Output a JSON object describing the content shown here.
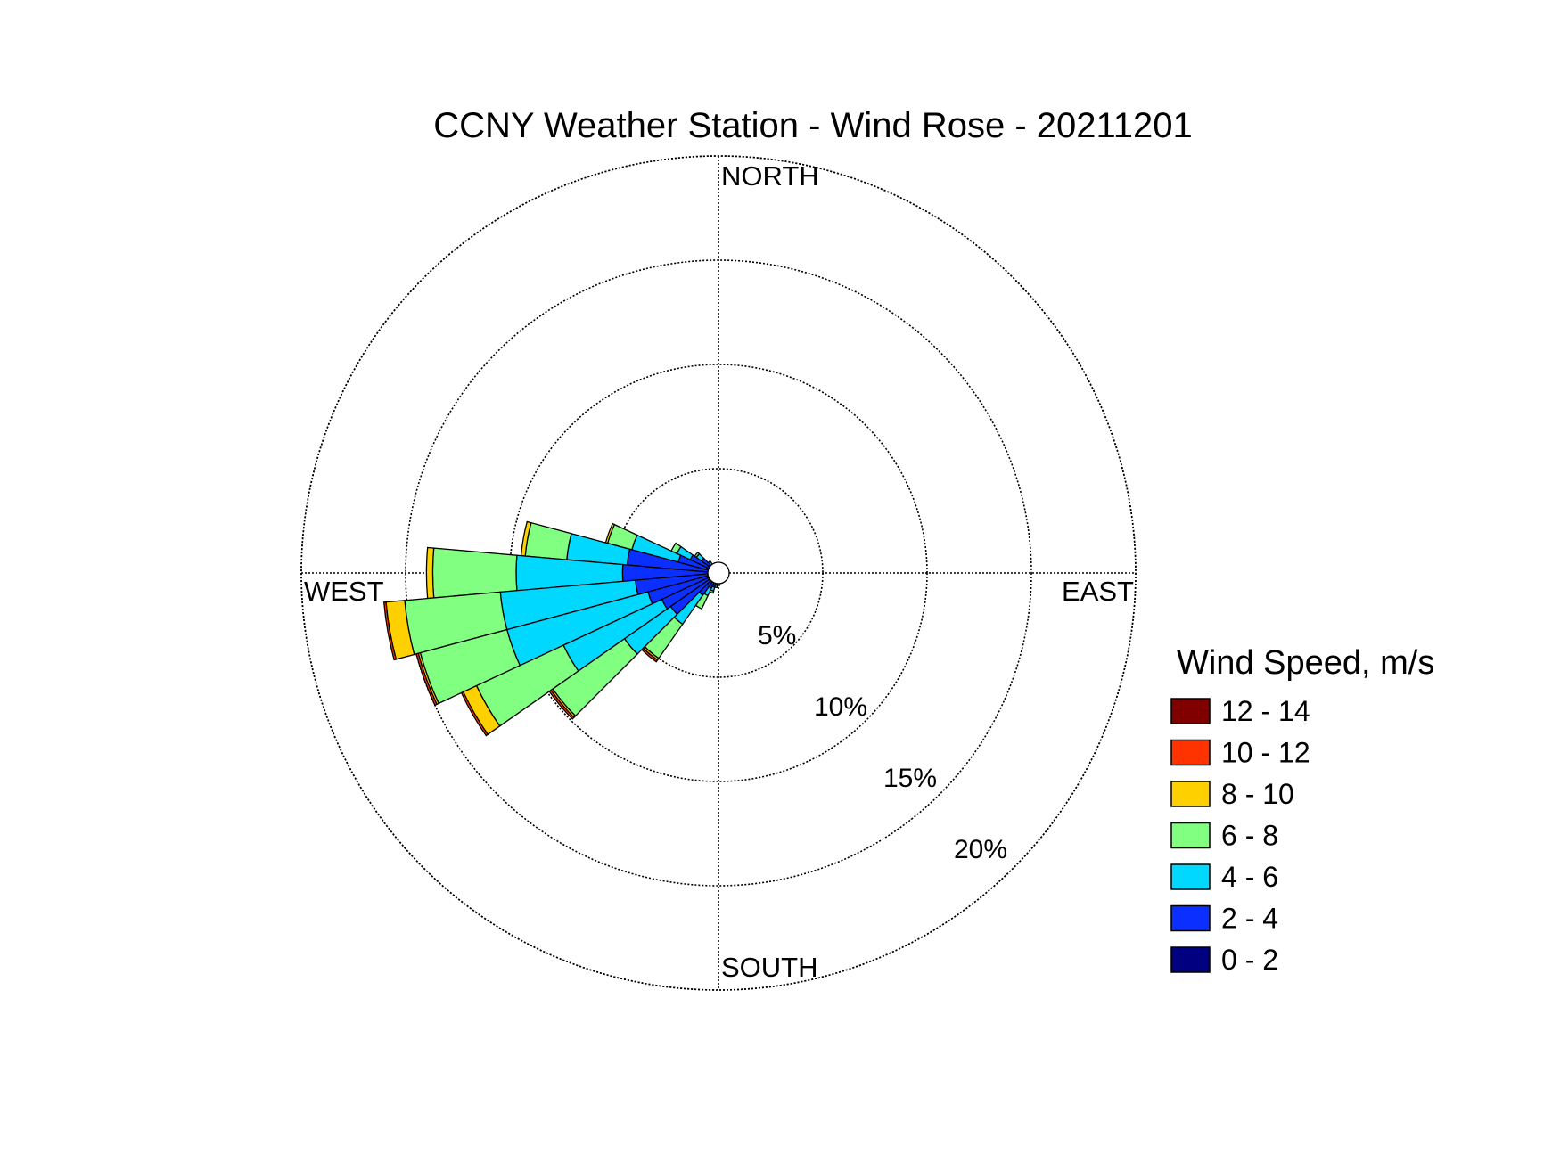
{
  "chart_data": {
    "type": "windrose",
    "title": "CCNY Weather Station - Wind Rose - 20211201",
    "directions": {
      "north": "NORTH",
      "south": "SOUTH",
      "east": "EAST",
      "west": "WEST"
    },
    "rings": [
      {
        "value": 5,
        "label": "5%"
      },
      {
        "value": 10,
        "label": "10%"
      },
      {
        "value": 15,
        "label": "15%"
      },
      {
        "value": 20,
        "label": "20%"
      }
    ],
    "rmax": 20,
    "legend": {
      "title": "Wind Speed, m/s",
      "placement": "right",
      "bins": [
        {
          "label": "12 - 14",
          "color": "#800000"
        },
        {
          "label": "10 - 12",
          "color": "#FF3300"
        },
        {
          "label": "8 - 10",
          "color": "#FFD000"
        },
        {
          "label": "6 - 8",
          "color": "#80FF80"
        },
        {
          "label": "4 - 6",
          "color": "#00D8FF"
        },
        {
          "label": "2 - 4",
          "color": "#0A2FFF"
        },
        {
          "label": "0 - 2",
          "color": "#000080"
        }
      ]
    },
    "sector_width_deg": 10,
    "sectors_note": "direction in degrees (meteorological, from north clockwise); cumulative frequency (%) at top of each speed bin: [0-2, 2-4, 4-6, 6-8, 8-10, 10-12, 12-14]",
    "sectors": [
      {
        "direction": 320,
        "cumulative": [
          0.3,
          0.5,
          0.7,
          0.7,
          0.7,
          0.7,
          0.7
        ]
      },
      {
        "direction": 310,
        "cumulative": [
          0.5,
          1.0,
          1.3,
          1.4,
          1.4,
          1.4,
          1.4
        ]
      },
      {
        "direction": 300,
        "cumulative": [
          0.5,
          1.5,
          2.2,
          2.5,
          2.5,
          2.5,
          2.5
        ]
      },
      {
        "direction": 290,
        "cumulative": [
          0.6,
          2.0,
          4.3,
          5.5,
          5.6,
          5.6,
          5.6
        ]
      },
      {
        "direction": 280,
        "cumulative": [
          0.5,
          4.4,
          7.3,
          9.3,
          9.5,
          9.5,
          9.5
        ]
      },
      {
        "direction": 270,
        "cumulative": [
          0.5,
          4.6,
          9.7,
          13.7,
          14.0,
          14.0,
          14.0
        ]
      },
      {
        "direction": 260,
        "cumulative": [
          0.5,
          4.0,
          10.5,
          15.1,
          16.0,
          16.1,
          16.1
        ]
      },
      {
        "direction": 250,
        "cumulative": [
          0.5,
          3.5,
          10.5,
          14.8,
          14.9,
          15.0,
          15.0
        ]
      },
      {
        "direction": 240,
        "cumulative": [
          0.5,
          3.0,
          8.2,
          12.8,
          13.5,
          13.6,
          13.6
        ]
      },
      {
        "direction": 230,
        "cumulative": [
          0.5,
          2.8,
          5.5,
          9.7,
          9.8,
          9.9,
          9.9
        ]
      },
      {
        "direction": 220,
        "cumulative": [
          0.5,
          1.3,
          3.0,
          5.0,
          5.1,
          5.2,
          5.2
        ]
      },
      {
        "direction": 210,
        "cumulative": [
          0.5,
          0.8,
          1.2,
          1.9,
          1.9,
          1.9,
          1.9
        ]
      },
      {
        "direction": 200,
        "cumulative": [
          0.5,
          0.7,
          0.9,
          1.0,
          1.0,
          1.0,
          1.0
        ]
      },
      {
        "direction": 190,
        "cumulative": [
          0.5,
          0.6,
          0.7,
          0.7,
          0.7,
          0.7,
          0.7
        ]
      },
      {
        "direction": 180,
        "cumulative": [
          0.4,
          0.5,
          0.6,
          0.6,
          0.6,
          0.6,
          0.6
        ]
      },
      {
        "direction": 150,
        "cumulative": [
          0.4,
          0.5,
          0.5,
          0.5,
          0.5,
          0.5,
          0.5
        ]
      },
      {
        "direction": 120,
        "cumulative": [
          0.4,
          0.5,
          0.5,
          0.5,
          0.5,
          0.5,
          0.5
        ]
      },
      {
        "direction": 100,
        "cumulative": [
          0.4,
          0.5,
          0.5,
          0.5,
          0.5,
          0.5,
          0.5
        ]
      },
      {
        "direction": 340,
        "cumulative": [
          0.3,
          0.4,
          0.4,
          0.4,
          0.4,
          0.4,
          0.4
        ]
      },
      {
        "direction": 350,
        "cumulative": [
          0.2,
          0.3,
          0.3,
          0.3,
          0.3,
          0.3,
          0.3
        ]
      }
    ]
  }
}
